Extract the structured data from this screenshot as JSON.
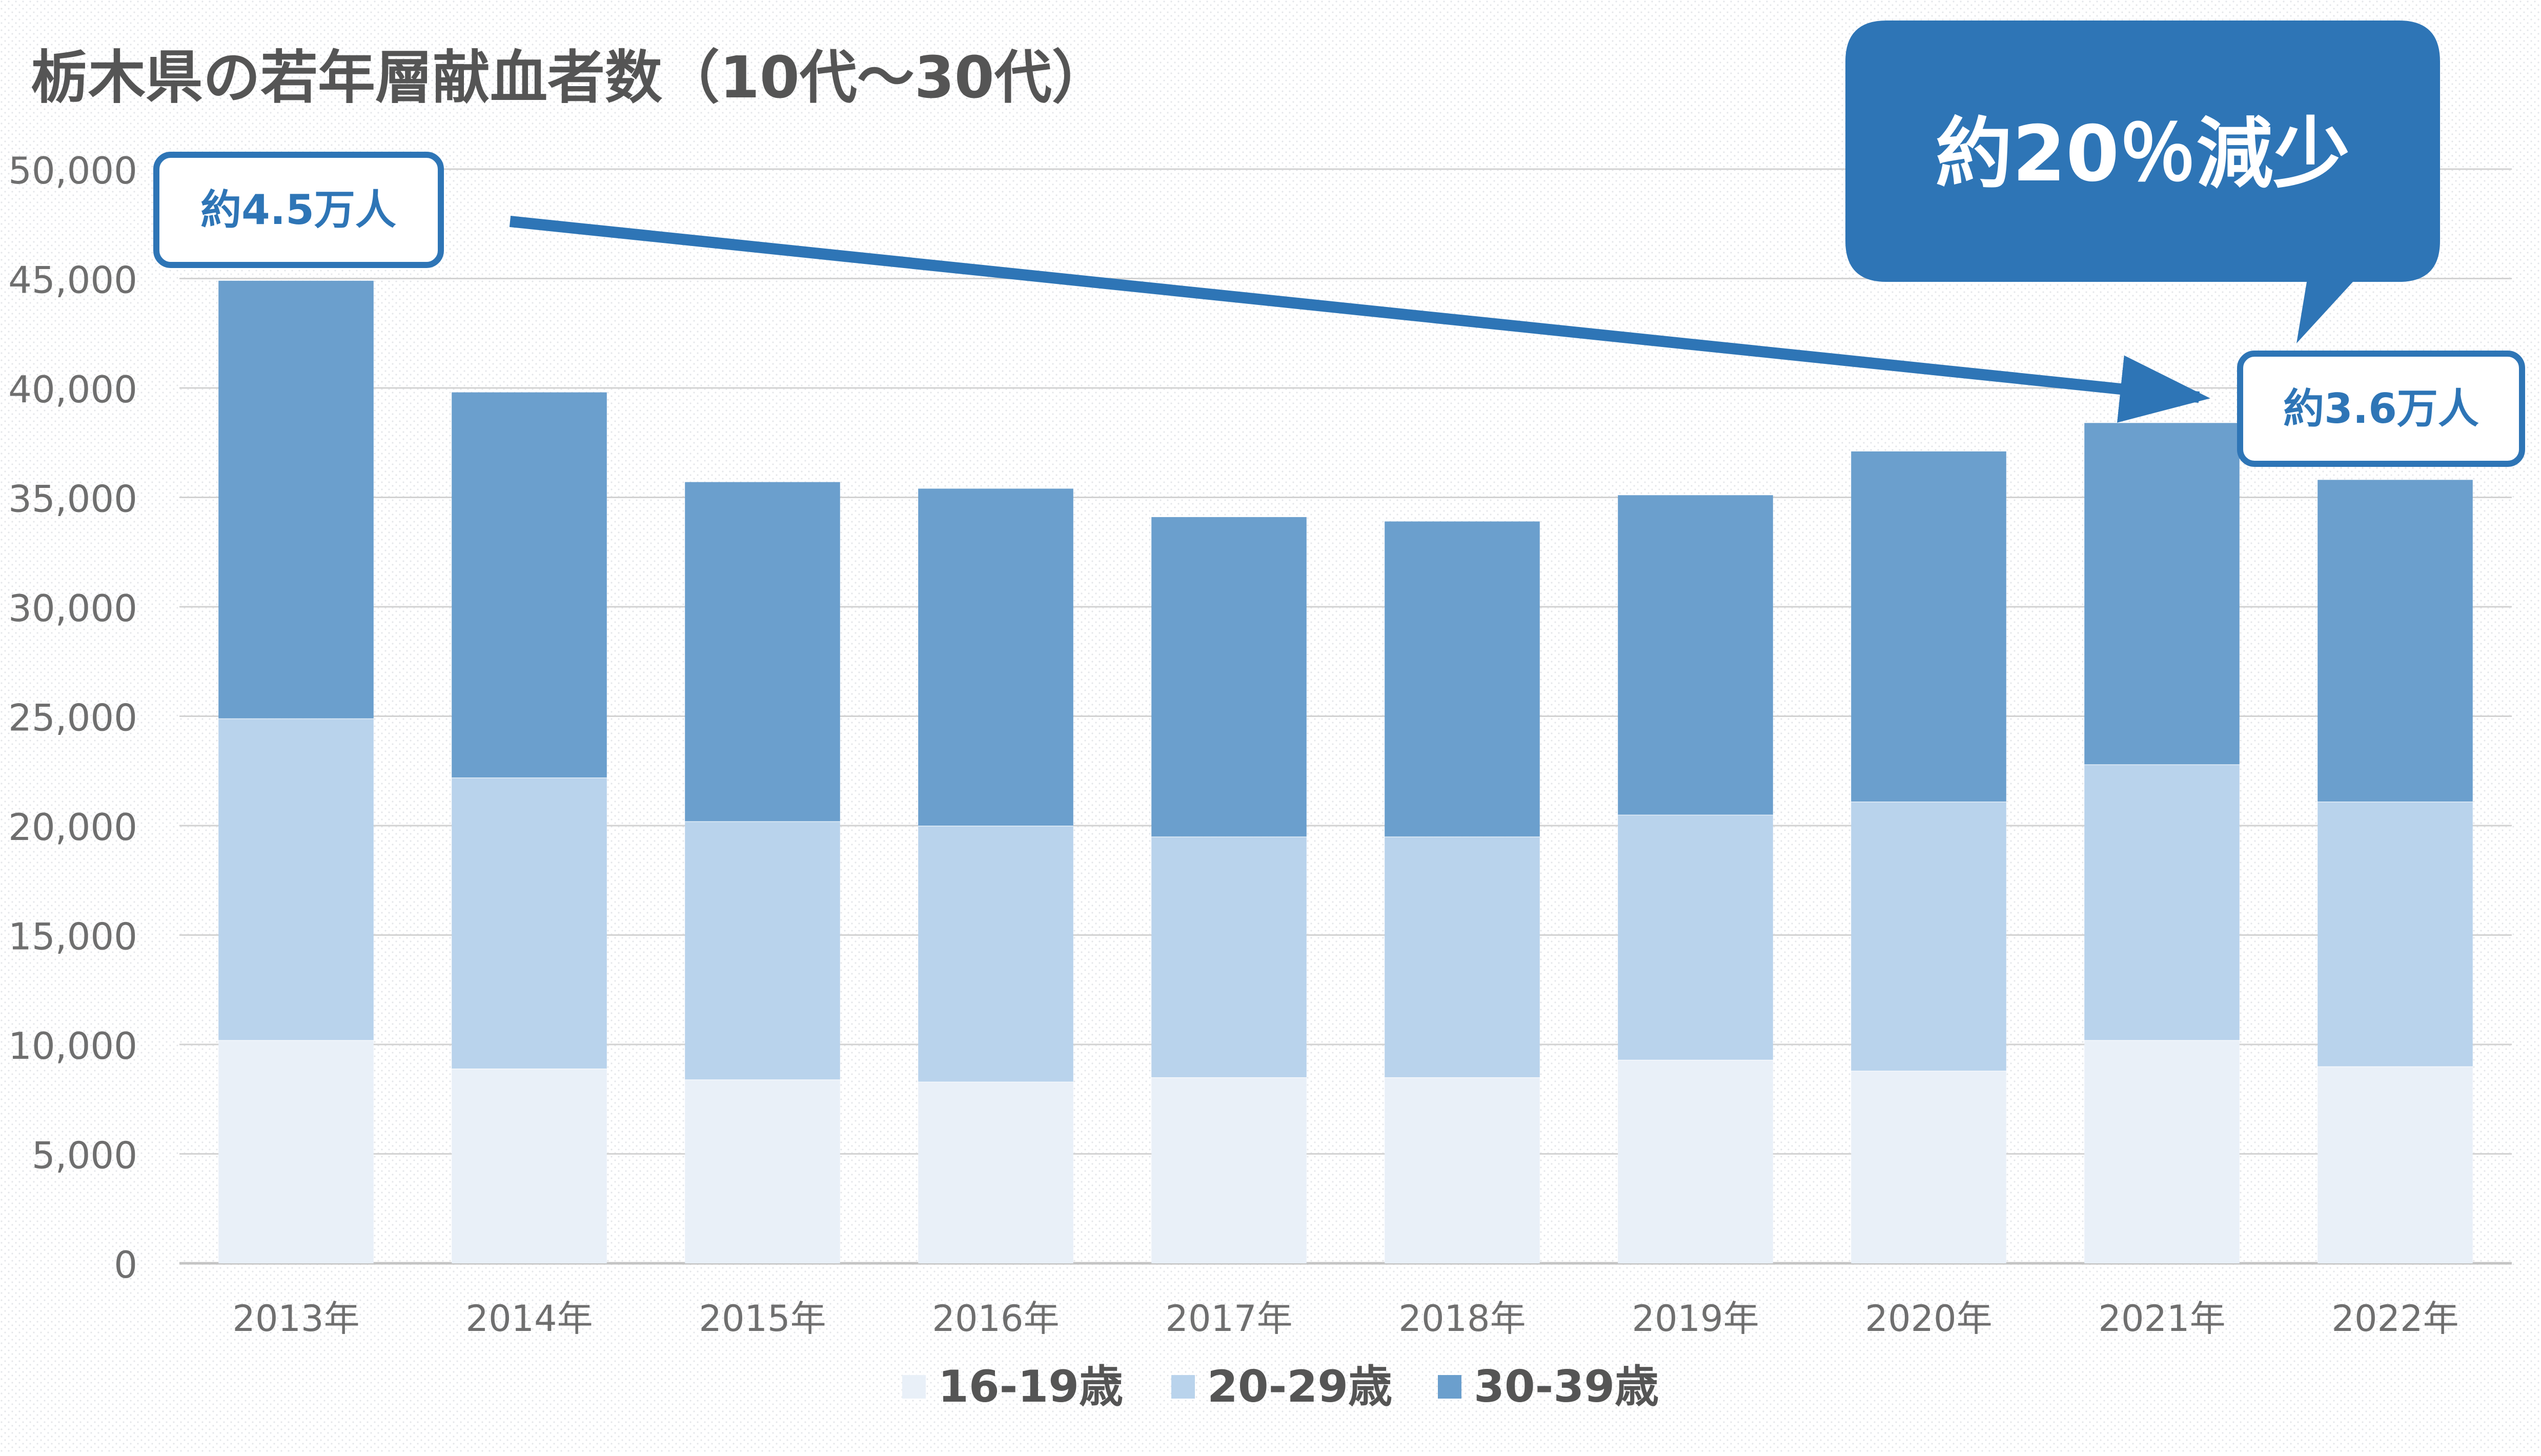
{
  "chart_data": {
    "type": "bar",
    "stacked": true,
    "title": "栃木県の若年層献血者数（10代〜30代）",
    "categories": [
      "2013年",
      "2014年",
      "2015年",
      "2016年",
      "2017年",
      "2018年",
      "2019年",
      "2020年",
      "2021年",
      "2022年"
    ],
    "series": [
      {
        "name": "16-19歳",
        "color": "#e9f0f8",
        "values": [
          10200,
          8900,
          8400,
          8300,
          8500,
          8500,
          9300,
          8800,
          10200,
          9000
        ]
      },
      {
        "name": "20-29歳",
        "color": "#b9d3ec",
        "values": [
          14700,
          13300,
          11800,
          11700,
          11000,
          11000,
          11200,
          12300,
          12600,
          12100
        ]
      },
      {
        "name": "30-39歳",
        "color": "#6b9fcd",
        "values": [
          20000,
          17600,
          15500,
          15400,
          14600,
          14400,
          14600,
          16000,
          15600,
          14700
        ]
      }
    ],
    "ylim": [
      0,
      50000
    ],
    "yticks": [
      "0",
      "5,000",
      "10,000",
      "15,000",
      "20,000",
      "25,000",
      "30,000",
      "35,000",
      "40,000",
      "45,000",
      "50,000"
    ],
    "grid": true,
    "legend": "bottom",
    "annotations": {
      "start_label": "約4.5万人",
      "end_label": "約3.6万人",
      "callout": "約20％減少",
      "accent_color": "#2e75b6"
    }
  }
}
